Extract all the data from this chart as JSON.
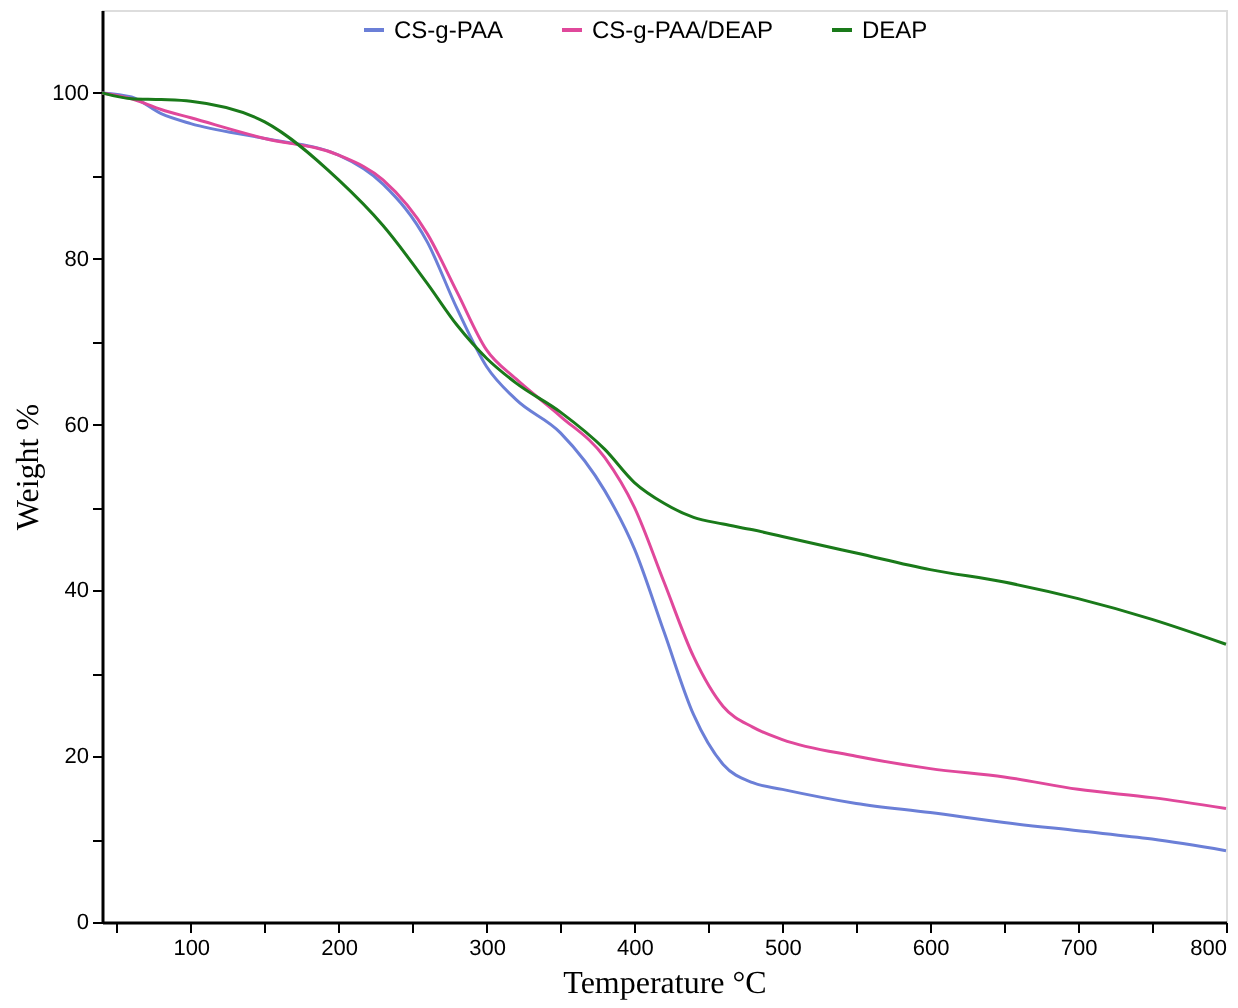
{
  "chart_data": {
    "type": "line",
    "xlabel": "Temperature °C",
    "ylabel": "Weight %",
    "x": [
      40,
      60,
      80,
      100,
      150,
      200,
      230,
      260,
      280,
      300,
      320,
      350,
      380,
      400,
      420,
      440,
      460,
      480,
      500,
      550,
      600,
      650,
      700,
      750,
      800
    ],
    "xlim": [
      40,
      800
    ],
    "ylim": [
      0,
      110
    ],
    "xticks": [
      {
        "value": 50,
        "label": null
      },
      100,
      {
        "value": 150,
        "label": null
      },
      200,
      {
        "value": 250,
        "label": null
      },
      300,
      {
        "value": 350,
        "label": null
      },
      400,
      {
        "value": 450,
        "label": null
      },
      500,
      {
        "value": 550,
        "label": null
      },
      600,
      {
        "value": 650,
        "label": null
      },
      700,
      {
        "value": 750,
        "label": null
      },
      800
    ],
    "yticks": [
      0,
      {
        "value": 10,
        "label": null
      },
      20,
      {
        "value": 30,
        "label": null
      },
      40,
      {
        "value": 50,
        "label": null
      },
      60,
      {
        "value": 70,
        "label": null
      },
      80,
      {
        "value": 90,
        "label": null
      },
      100
    ],
    "grid": false,
    "legend": "top",
    "line_style": "solid",
    "marker": "none",
    "series": [
      {
        "name": "CS-g-PAA",
        "color": "#6b7fd7",
        "values": [
          100,
          99.5,
          97.5,
          96.3,
          94.5,
          92.5,
          89,
          82,
          74,
          67,
          63,
          59,
          52,
          45,
          35,
          25,
          19,
          16.8,
          16,
          14.3,
          13.2,
          12,
          11,
          10,
          8.6
        ]
      },
      {
        "name": "CS-g-PAA/DEAP",
        "color": "#e0489b",
        "values": [
          100,
          99.3,
          98,
          97,
          94.5,
          92.5,
          89.5,
          83,
          76,
          69,
          65.5,
          61,
          56,
          50,
          41,
          32,
          26,
          23.5,
          22,
          20,
          18.5,
          17.5,
          16,
          15,
          13.7
        ]
      },
      {
        "name": "DEAP",
        "color": "#1a7a1a",
        "values": [
          100,
          99.3,
          99.2,
          99,
          96.5,
          89.5,
          84,
          77,
          72,
          68,
          65,
          61.5,
          57,
          53,
          50.5,
          48.8,
          48,
          47.3,
          46.5,
          44.5,
          42.5,
          41,
          39,
          36.5,
          33.5
        ]
      }
    ]
  }
}
